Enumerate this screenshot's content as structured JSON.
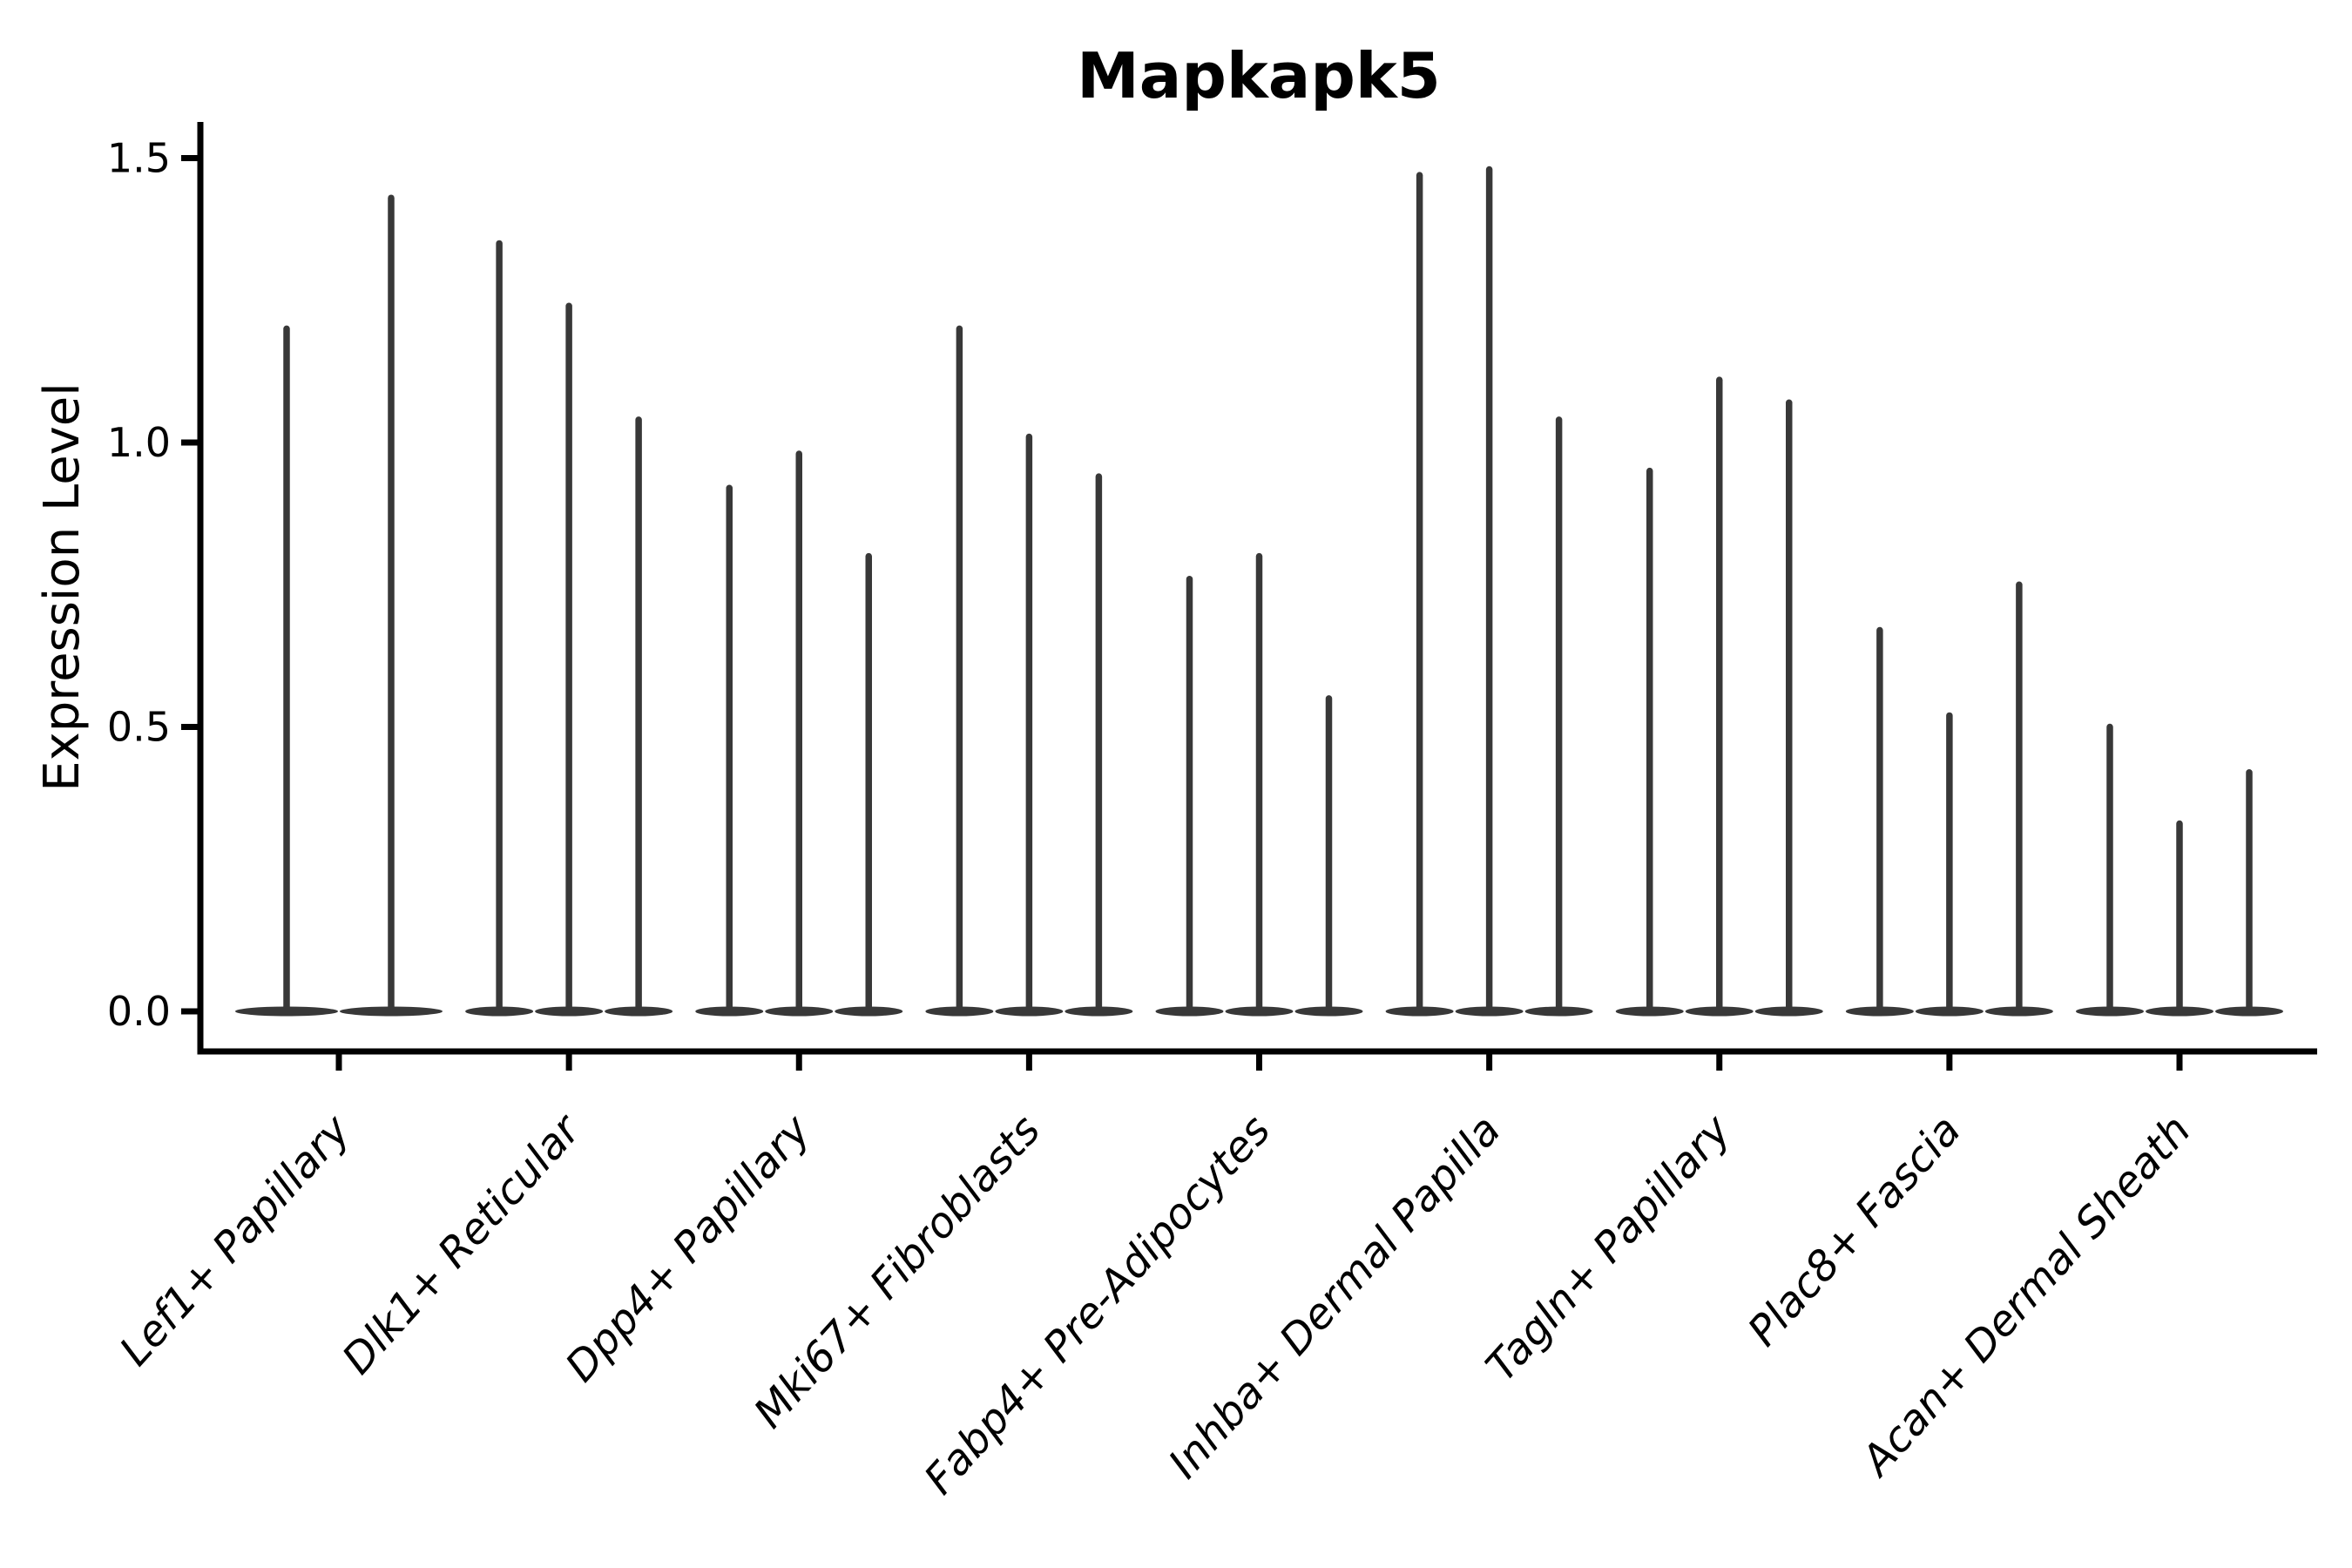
{
  "figure": {
    "title": "Mapkapk5",
    "y_axis_label": "Expression Level"
  },
  "chart_data": {
    "type": "violin",
    "title": "Mapkapk5",
    "xlabel": "",
    "ylabel": "Expression Level",
    "ylim": [
      0,
      1.56
    ],
    "yticks": [
      0,
      0.5,
      1.0,
      1.5
    ],
    "ytick_labels": [
      "0.0",
      "0.5",
      "1.0",
      "1.5"
    ],
    "grid": false,
    "legend_position": "none",
    "violin_shape": "narrow-spike-with-flat-base-at-zero",
    "categories": [
      "Lef1+ Papillary",
      "Dlk1+ Reticular",
      "Dpp4+ Papillary",
      "Mki67+ Fibroblasts",
      "Fabp4+ Pre-Adipocytes",
      "Inhba+ Dermal Papilla",
      "Tagln+ Papillary",
      "Plac8+ Fascia",
      "Acan+ Dermal Sheath"
    ],
    "groups": [
      {
        "category": "Lef1+ Papillary",
        "violin_max_values": [
          1.2,
          1.43
        ]
      },
      {
        "category": "Dlk1+ Reticular",
        "violin_max_values": [
          1.35,
          1.24,
          1.04
        ]
      },
      {
        "category": "Dpp4+ Papillary",
        "violin_max_values": [
          0.92,
          0.98,
          0.8
        ]
      },
      {
        "category": "Mki67+ Fibroblasts",
        "violin_max_values": [
          1.2,
          1.01,
          0.94
        ]
      },
      {
        "category": "Fabp4+ Pre-Adipocytes",
        "violin_max_values": [
          0.76,
          0.8,
          0.55
        ]
      },
      {
        "category": "Inhba+ Dermal Papilla",
        "violin_max_values": [
          1.47,
          1.48,
          1.04
        ]
      },
      {
        "category": "Tagln+ Papillary",
        "violin_max_values": [
          0.95,
          1.11,
          1.07
        ]
      },
      {
        "category": "Plac8+ Fascia",
        "violin_max_values": [
          0.67,
          0.52,
          0.75
        ]
      },
      {
        "category": "Acan+ Dermal Sheath",
        "violin_max_values": [
          0.5,
          0.33,
          0.42
        ]
      }
    ],
    "colors": {
      "violin": "#383838",
      "axis": "#000000",
      "text": "#000000",
      "background": "#ffffff"
    }
  }
}
